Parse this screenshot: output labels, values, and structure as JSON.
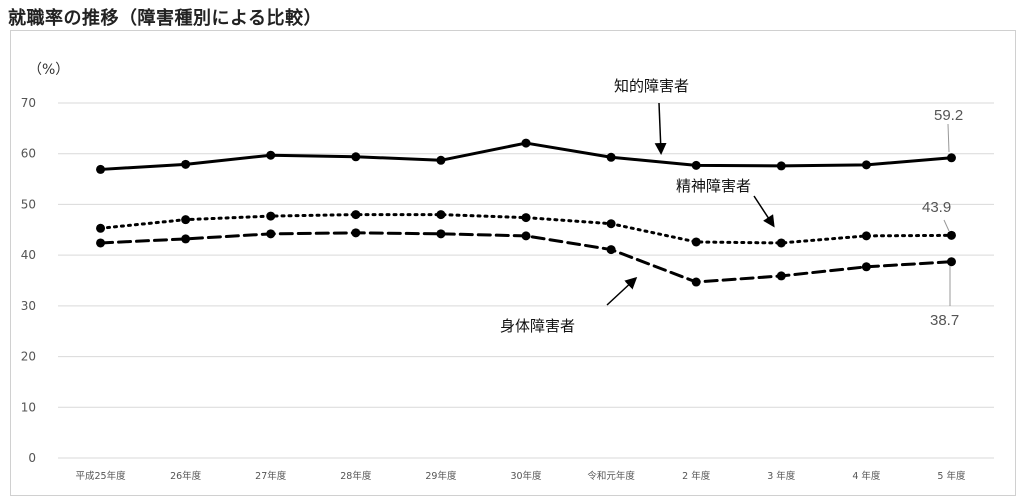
{
  "page": {
    "title": "就職率の推移（障害種別による比較）"
  },
  "chart_data": {
    "type": "line",
    "title": "就職率の推移（障害種別による比較）",
    "unit_label": "（%）",
    "xlabel": "",
    "ylabel": "",
    "categories": [
      "平成25年度",
      "26年度",
      "27年度",
      "28年度",
      "29年度",
      "30年度",
      "令和元年度",
      "2 年度",
      "3 年度",
      "4 年度",
      "5 年度"
    ],
    "ylim": [
      0,
      70
    ],
    "yticks": [
      0,
      10,
      20,
      30,
      40,
      50,
      60,
      70
    ],
    "grid": true,
    "legend": "none",
    "series": [
      {
        "name": "知的障害者",
        "style": "solid",
        "color": "#000000",
        "values": [
          56.9,
          57.9,
          59.7,
          59.4,
          58.7,
          62.1,
          59.3,
          57.7,
          57.6,
          57.8,
          59.2
        ]
      },
      {
        "name": "精神障害者",
        "style": "dotted",
        "color": "#000000",
        "values": [
          45.3,
          47.0,
          47.7,
          48.0,
          48.0,
          47.4,
          46.2,
          42.6,
          42.4,
          43.8,
          43.9
        ]
      },
      {
        "name": "身体障害者",
        "style": "dashed",
        "color": "#000000",
        "values": [
          42.4,
          43.2,
          44.2,
          44.4,
          44.2,
          43.8,
          41.1,
          34.7,
          35.9,
          37.7,
          38.7
        ]
      }
    ],
    "annotations": [
      "59.2",
      "43.9",
      "38.7"
    ]
  }
}
